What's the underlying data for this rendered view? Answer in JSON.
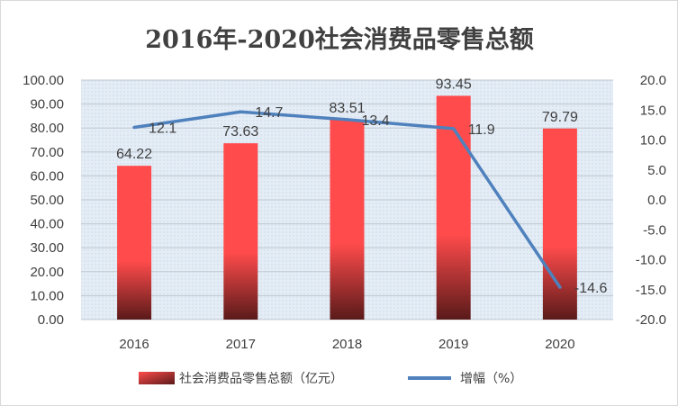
{
  "chart_data": {
    "type": "bar+line",
    "title": "2016年-2020社会消费品零售总额",
    "categories": [
      "2016",
      "2017",
      "2018",
      "2019",
      "2020"
    ],
    "series": [
      {
        "name": "社会消费品零售总额（亿元）",
        "type": "bar",
        "axis": "left",
        "values": [
          64.22,
          73.63,
          83.51,
          93.45,
          79.79
        ],
        "labels": [
          "64.22",
          "73.63",
          "83.51",
          "93.45",
          "79.79"
        ],
        "color": "#ff4b4b"
      },
      {
        "name": "增幅（%）",
        "type": "line",
        "axis": "right",
        "values": [
          12.1,
          14.7,
          13.4,
          11.9,
          -14.6
        ],
        "labels": [
          "12.1",
          "14.7",
          "13.4",
          "11.9",
          "-14.6"
        ],
        "color": "#4f81bd"
      }
    ],
    "y_left": {
      "min": 0,
      "max": 100,
      "step": 10,
      "ticks": [
        "0.00",
        "10.00",
        "20.00",
        "30.00",
        "40.00",
        "50.00",
        "60.00",
        "70.00",
        "80.00",
        "90.00",
        "100.00"
      ]
    },
    "y_right": {
      "min": -20,
      "max": 20,
      "step": 5,
      "ticks": [
        "-20.0",
        "-15.0",
        "-10.0",
        "-5.0",
        "0.0",
        "5.0",
        "10.0",
        "15.0",
        "20.0"
      ]
    },
    "legend_position": "bottom",
    "plot_background": "#dce6f1"
  }
}
